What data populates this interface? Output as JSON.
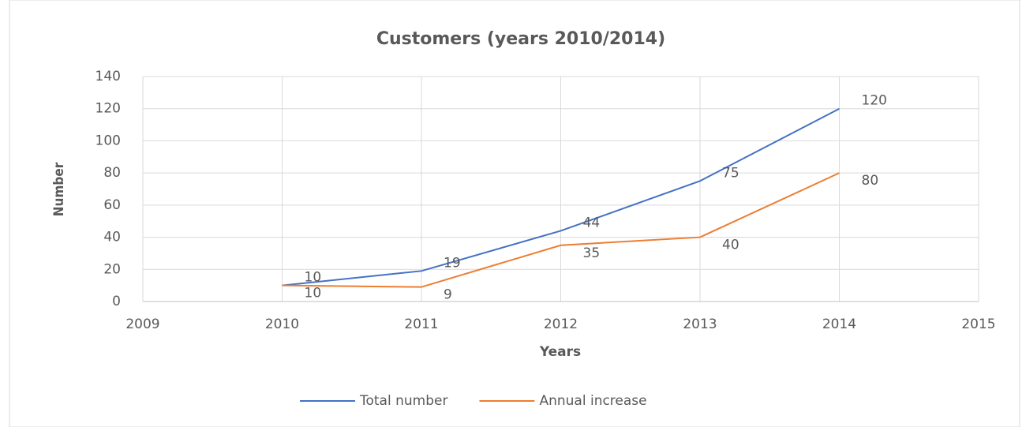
{
  "chart_data": {
    "type": "line",
    "title": "Customers (years 2010/2014)",
    "x_label": "Years",
    "y_label": "Number",
    "x": [
      2010,
      2011,
      2012,
      2013,
      2014
    ],
    "series": [
      {
        "name": "Total number",
        "color": "#4472c4",
        "values": [
          10,
          19,
          44,
          75,
          120
        ]
      },
      {
        "name": "Annual increase",
        "color": "#ed7d31",
        "values": [
          10,
          9,
          35,
          40,
          80
        ]
      }
    ],
    "xlim": [
      2009,
      2015
    ],
    "xticks": [
      2009,
      2010,
      2011,
      2012,
      2013,
      2014,
      2015
    ],
    "ylim": [
      0,
      140
    ],
    "yticks": [
      0,
      20,
      40,
      60,
      80,
      100,
      120,
      140
    ],
    "grid": true,
    "legend": "bottom",
    "data_labels": true
  }
}
